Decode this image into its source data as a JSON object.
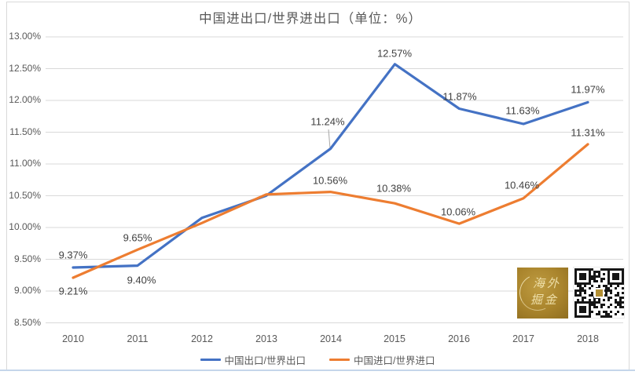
{
  "title": "中国进出口/世界进出口（单位：%）",
  "chart_data": {
    "type": "line",
    "title": "中国进出口/世界进出口（单位：%）",
    "categories": [
      "2010",
      "2011",
      "2012",
      "2013",
      "2014",
      "2015",
      "2016",
      "2017",
      "2018"
    ],
    "series": [
      {
        "name": "中国出口/世界出口",
        "color": "#4472c4",
        "values": [
          9.37,
          9.4,
          10.15,
          10.5,
          11.24,
          12.57,
          11.87,
          11.63,
          11.97
        ],
        "point_labels": [
          "9.37%",
          "9.40%",
          "",
          "",
          "11.24%",
          "12.57%",
          "11.87%",
          "11.63%",
          "11.97%"
        ]
      },
      {
        "name": "中国进口/世界进口",
        "color": "#ed7d31",
        "values": [
          9.21,
          9.65,
          10.07,
          10.52,
          10.56,
          10.38,
          10.06,
          10.46,
          11.31
        ],
        "point_labels": [
          "9.21%",
          "9.65%",
          "",
          "",
          "10.56%",
          "10.38%",
          "10.06%",
          "10.46%",
          "11.31%"
        ]
      }
    ],
    "yticks": [
      "13.00%",
      "12.50%",
      "12.00%",
      "11.50%",
      "11.00%",
      "10.50%",
      "10.00%",
      "9.50%",
      "9.00%",
      "8.50%"
    ],
    "ylim": [
      8.5,
      13.0
    ],
    "xlabel": "",
    "ylabel": "",
    "grid": true,
    "legend_position": "bottom"
  },
  "watermark": {
    "logo_lines": [
      "海外",
      "掘金"
    ]
  },
  "colors": {
    "grid": "#d9d9d9",
    "axis_text": "#595959",
    "label_text": "#404040",
    "bottom_rule": "#c5d6ea",
    "logo_gold": "#b38f33"
  }
}
